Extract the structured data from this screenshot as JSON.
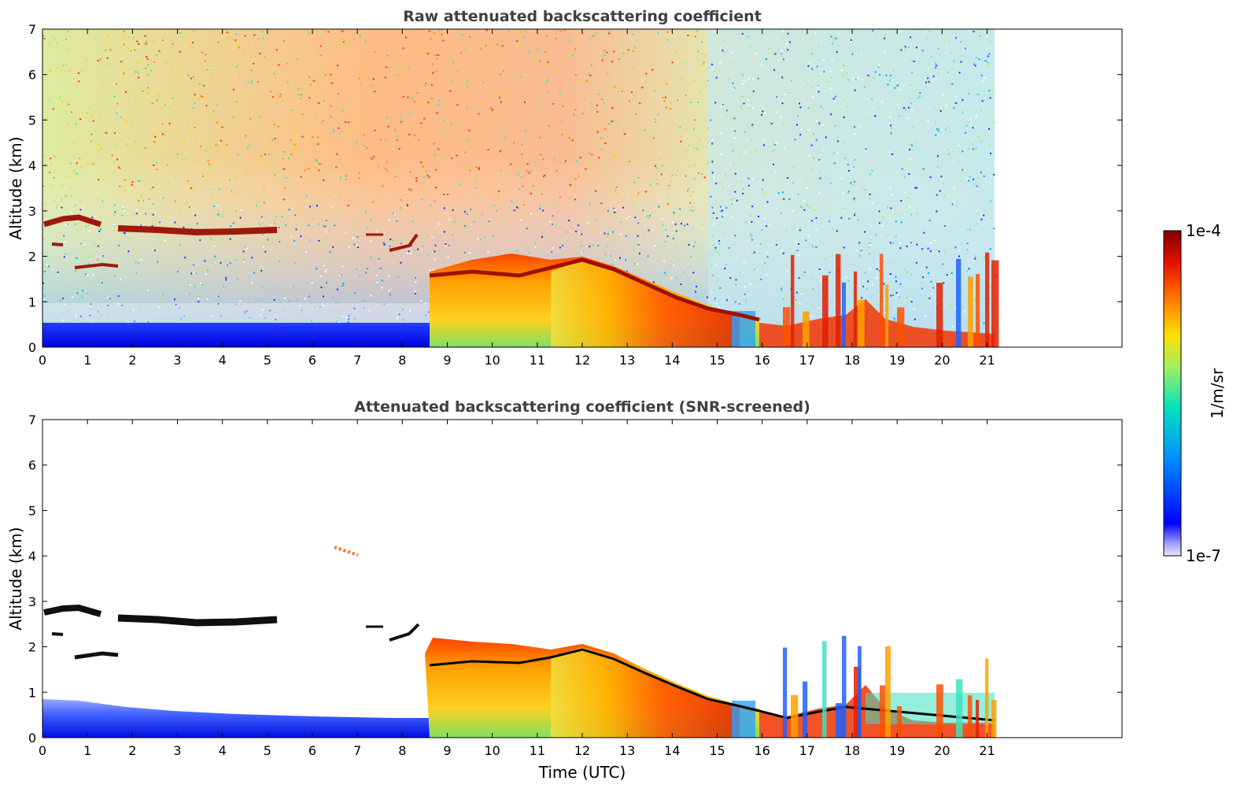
{
  "chart_data": [
    {
      "type": "heatmap",
      "title": "Raw attenuated backscattering coefficient",
      "xlabel": "",
      "ylabel": "Altitude (km)",
      "xlim": [
        0,
        24
      ],
      "ylim": [
        0,
        7
      ],
      "x_ticks": [
        0,
        1,
        2,
        3,
        4,
        5,
        6,
        7,
        8,
        9,
        10,
        11,
        12,
        13,
        14,
        15,
        16,
        17,
        18,
        19,
        20,
        21
      ],
      "y_ticks": [
        0,
        1,
        2,
        3,
        4,
        5,
        6,
        7
      ],
      "data_end_time": 21.2,
      "features": [
        {
          "name": "boundary layer",
          "t_start": 0,
          "t_end": 8.6,
          "z_bottom": 0,
          "z_top": 0.4,
          "level": "low"
        },
        {
          "name": "cloud layer",
          "t_start": 0,
          "t_end": 1.3,
          "altitude": 2.75,
          "level": "max"
        },
        {
          "name": "cloud layer",
          "t_start": 1.7,
          "t_end": 5.2,
          "altitude": 2.58,
          "level": "max"
        },
        {
          "name": "cloud layer",
          "t_start": 0.7,
          "t_end": 1.8,
          "altitude": 1.8,
          "level": "max"
        },
        {
          "name": "aerosol layer",
          "t_start": 8.6,
          "t_end": 16.0,
          "top_altitudes": [
            2.1,
            1.9,
            1.8,
            1.7,
            1.3,
            1.0,
            0.75,
            0.5
          ],
          "level": "high"
        },
        {
          "name": "aerosol layer",
          "t_start": 16.0,
          "t_end": 21.2,
          "z_bottom": 0,
          "z_top": 0.5,
          "level": "high"
        }
      ]
    },
    {
      "type": "heatmap",
      "title": "Attenuated backscattering coefficient (SNR-screened)",
      "xlabel": "Time (UTC)",
      "ylabel": "Altitude (km)",
      "xlim": [
        0,
        24
      ],
      "ylim": [
        0,
        7
      ],
      "x_ticks": [
        0,
        1,
        2,
        3,
        4,
        5,
        6,
        7,
        8,
        9,
        10,
        11,
        12,
        13,
        14,
        15,
        16,
        17,
        18,
        19,
        20,
        21
      ],
      "y_ticks": [
        0,
        1,
        2,
        3,
        4,
        5,
        6,
        7
      ],
      "data_end_time": 21.2,
      "features": [
        {
          "name": "boundary layer",
          "t_start": 0,
          "t_end": 8.6,
          "z_bottom": 0,
          "z_top": 0.8,
          "level": "low"
        },
        {
          "name": "cloud layer",
          "t_start": 0,
          "t_end": 1.3,
          "altitude": 2.75,
          "level": "saturated"
        },
        {
          "name": "cloud layer",
          "t_start": 1.7,
          "t_end": 5.2,
          "altitude": 2.58,
          "level": "saturated"
        },
        {
          "name": "aerosol layer",
          "t_start": 8.6,
          "t_end": 21.2,
          "level": "high"
        }
      ]
    }
  ],
  "colorbar": {
    "label": "1/m/sr",
    "max_label": "1e-4",
    "min_label": "1e-7",
    "scale": "log",
    "colormap": [
      "#ffffff",
      "#0000ff",
      "#00bfff",
      "#40e0a0",
      "#d0f040",
      "#ffd000",
      "#ff7000",
      "#e01000",
      "#800000"
    ]
  }
}
